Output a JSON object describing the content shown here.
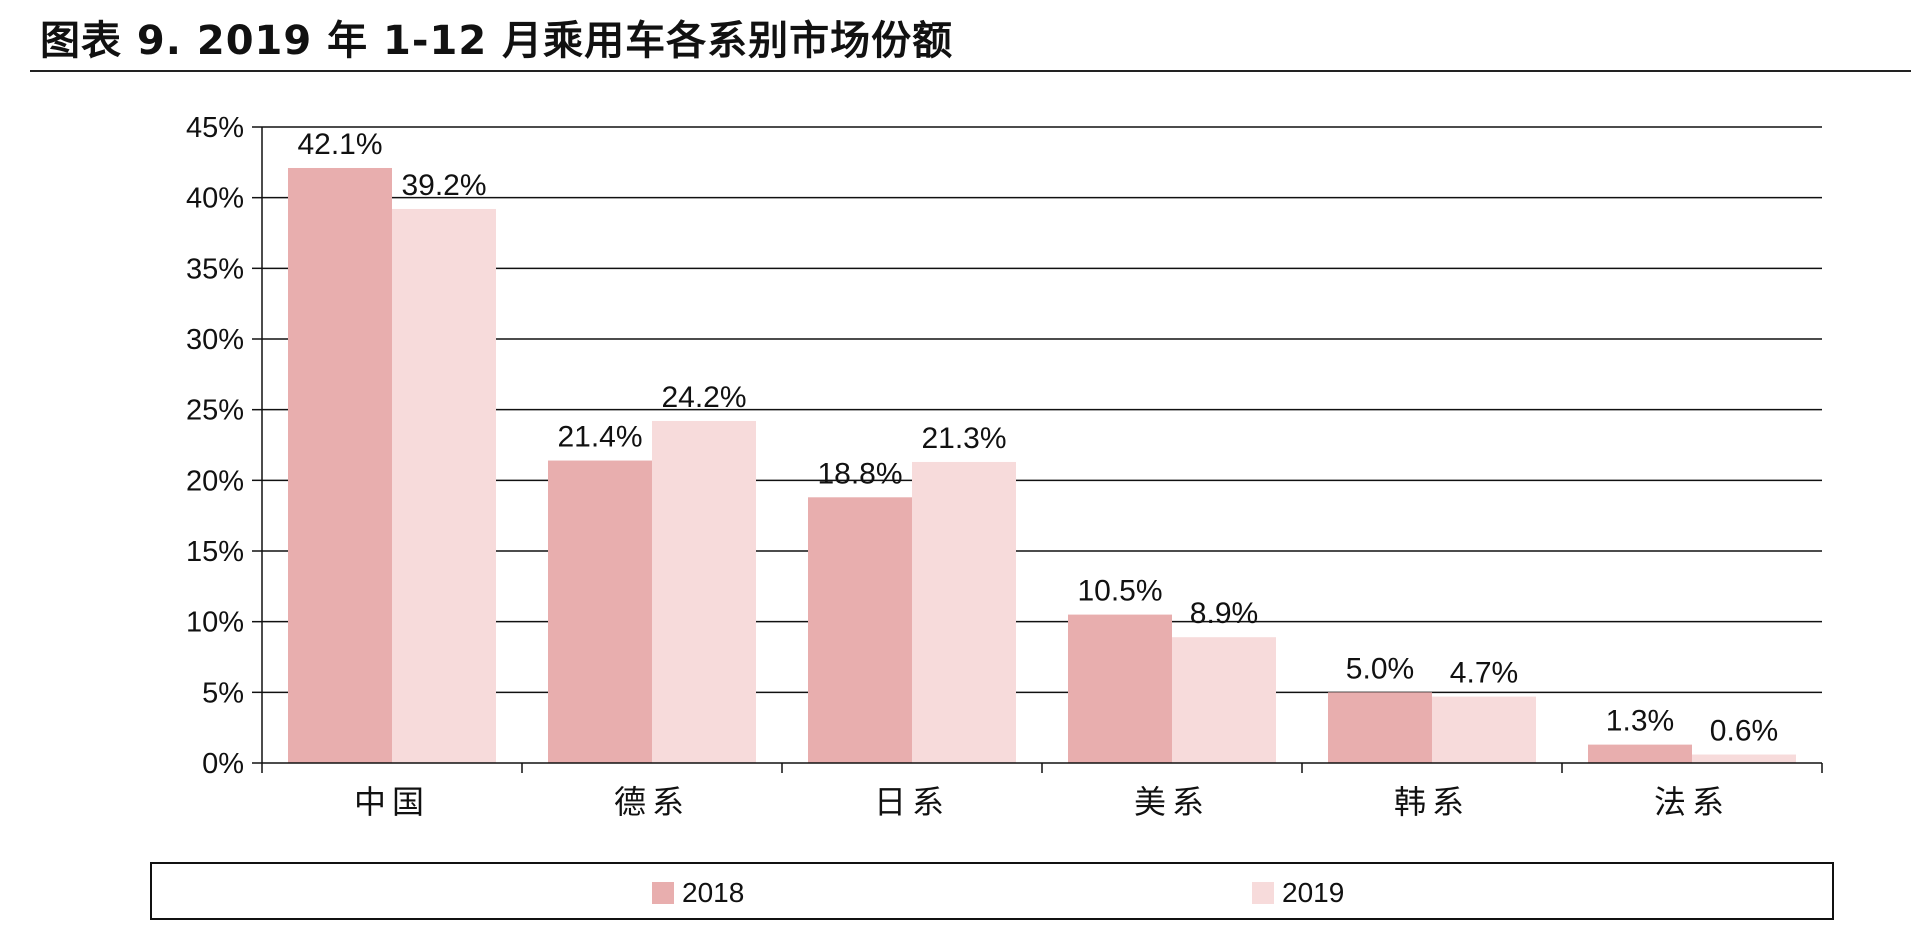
{
  "title": "图表 9. 2019 年 1-12 月乘用车各系别市场份额",
  "colors": {
    "s2018": "#e8aeae",
    "s2019": "#f7dbdb",
    "grid": "#111111"
  },
  "chart_data": {
    "type": "bar",
    "title": "图表 9. 2019 年 1-12 月乘用车各系别市场份额",
    "xlabel": "",
    "ylabel": "",
    "ylim": [
      0,
      45
    ],
    "yticks": [
      "0%",
      "5%",
      "10%",
      "15%",
      "20%",
      "25%",
      "30%",
      "35%",
      "40%",
      "45%"
    ],
    "categories": [
      "中国",
      "德系",
      "日系",
      "美系",
      "韩系",
      "法系"
    ],
    "series": [
      {
        "name": "2018",
        "values": [
          42.1,
          21.4,
          18.8,
          10.5,
          5.0,
          1.3
        ],
        "labels": [
          "42.1%",
          "21.4%",
          "18.8%",
          "10.5%",
          "5.0%",
          "1.3%"
        ]
      },
      {
        "name": "2019",
        "values": [
          39.2,
          24.2,
          21.3,
          8.9,
          4.7,
          0.6
        ],
        "labels": [
          "39.2%",
          "24.2%",
          "21.3%",
          "8.9%",
          "4.7%",
          "0.6%"
        ]
      }
    ],
    "grid": true,
    "legend_position": "bottom"
  }
}
